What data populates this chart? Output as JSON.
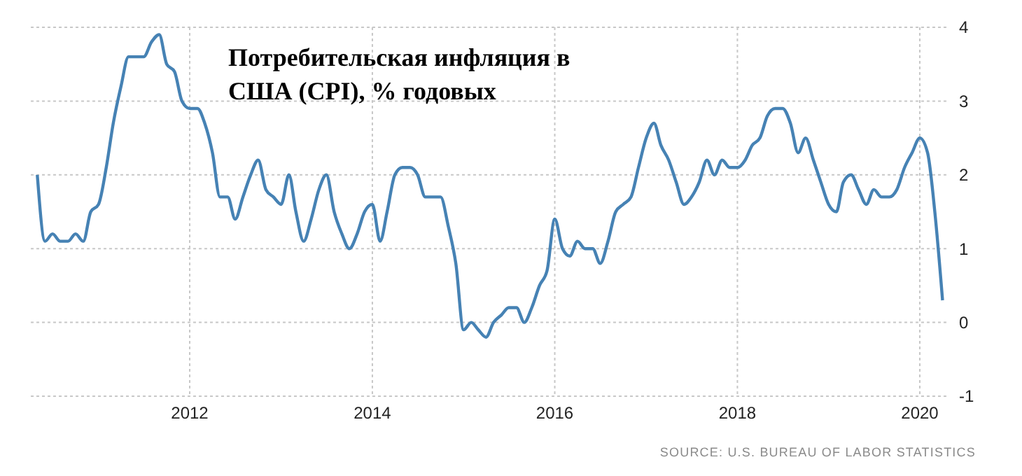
{
  "chart_data": {
    "type": "line",
    "title": "Потребительская инфляция в США (CPI), % годовых",
    "annotations": [
      "SOURCE: U.S. BUREAU OF LABOR STATISTICS"
    ],
    "x": [
      "2010-05",
      "2010-06",
      "2010-07",
      "2010-08",
      "2010-09",
      "2010-10",
      "2010-11",
      "2010-12",
      "2011-01",
      "2011-02",
      "2011-03",
      "2011-04",
      "2011-05",
      "2011-06",
      "2011-07",
      "2011-08",
      "2011-09",
      "2011-10",
      "2011-11",
      "2011-12",
      "2012-01",
      "2012-02",
      "2012-03",
      "2012-04",
      "2012-05",
      "2012-06",
      "2012-07",
      "2012-08",
      "2012-09",
      "2012-10",
      "2012-11",
      "2012-12",
      "2013-01",
      "2013-02",
      "2013-03",
      "2013-04",
      "2013-05",
      "2013-06",
      "2013-07",
      "2013-08",
      "2013-09",
      "2013-10",
      "2013-11",
      "2013-12",
      "2014-01",
      "2014-02",
      "2014-03",
      "2014-04",
      "2014-05",
      "2014-06",
      "2014-07",
      "2014-08",
      "2014-09",
      "2014-10",
      "2014-11",
      "2014-12",
      "2015-01",
      "2015-02",
      "2015-03",
      "2015-04",
      "2015-05",
      "2015-06",
      "2015-07",
      "2015-08",
      "2015-09",
      "2015-10",
      "2015-11",
      "2015-12",
      "2016-01",
      "2016-02",
      "2016-03",
      "2016-04",
      "2016-05",
      "2016-06",
      "2016-07",
      "2016-08",
      "2016-09",
      "2016-10",
      "2016-11",
      "2016-12",
      "2017-01",
      "2017-02",
      "2017-03",
      "2017-04",
      "2017-05",
      "2017-06",
      "2017-07",
      "2017-08",
      "2017-09",
      "2017-10",
      "2017-11",
      "2017-12",
      "2018-01",
      "2018-02",
      "2018-03",
      "2018-04",
      "2018-05",
      "2018-06",
      "2018-07",
      "2018-08",
      "2018-09",
      "2018-10",
      "2018-11",
      "2018-12",
      "2019-01",
      "2019-02",
      "2019-03",
      "2019-04",
      "2019-05",
      "2019-06",
      "2019-07",
      "2019-08",
      "2019-09",
      "2019-10",
      "2019-11",
      "2019-12",
      "2020-01",
      "2020-02",
      "2020-03",
      "2020-04"
    ],
    "series": [
      {
        "color": "#4682b4",
        "values": [
          2.0,
          1.1,
          1.2,
          1.1,
          1.1,
          1.2,
          1.1,
          1.5,
          1.6,
          2.1,
          2.7,
          3.2,
          3.6,
          3.6,
          3.6,
          3.8,
          3.9,
          3.5,
          3.4,
          3.0,
          2.9,
          2.9,
          2.7,
          2.3,
          1.7,
          1.7,
          1.4,
          1.7,
          2.0,
          2.2,
          1.8,
          1.7,
          1.6,
          2.0,
          1.5,
          1.1,
          1.4,
          1.8,
          2.0,
          1.5,
          1.2,
          1.0,
          1.2,
          1.5,
          1.6,
          1.1,
          1.5,
          2.0,
          2.1,
          2.1,
          2.0,
          1.7,
          1.7,
          1.7,
          1.3,
          0.8,
          -0.1,
          0.0,
          -0.1,
          -0.2,
          0.0,
          0.1,
          0.2,
          0.2,
          0.0,
          0.2,
          0.5,
          0.7,
          1.4,
          1.0,
          0.9,
          1.1,
          1.0,
          1.0,
          0.8,
          1.1,
          1.5,
          1.6,
          1.7,
          2.1,
          2.5,
          2.7,
          2.4,
          2.2,
          1.9,
          1.6,
          1.7,
          1.9,
          2.2,
          2.0,
          2.2,
          2.1,
          2.1,
          2.2,
          2.4,
          2.5,
          2.8,
          2.9,
          2.9,
          2.7,
          2.3,
          2.5,
          2.2,
          1.9,
          1.6,
          1.5,
          1.9,
          2.0,
          1.8,
          1.6,
          1.8,
          1.7,
          1.7,
          1.8,
          2.1,
          2.3,
          2.5,
          2.3,
          1.5,
          0.3
        ]
      }
    ],
    "xlim": [
      "2010-04-05",
      "2020-04-22"
    ],
    "xticks": [
      {
        "value": "2012-01",
        "label": "2012"
      },
      {
        "value": "2014-01",
        "label": "2014"
      },
      {
        "value": "2016-01",
        "label": "2016"
      },
      {
        "value": "2018-01",
        "label": "2018"
      },
      {
        "value": "2020-01",
        "label": "2020"
      }
    ],
    "ylim": [
      -1,
      4
    ],
    "yticks": [
      -1,
      0,
      1,
      2,
      3,
      4
    ],
    "grid": true,
    "marker": "none",
    "line_style": "solid"
  }
}
